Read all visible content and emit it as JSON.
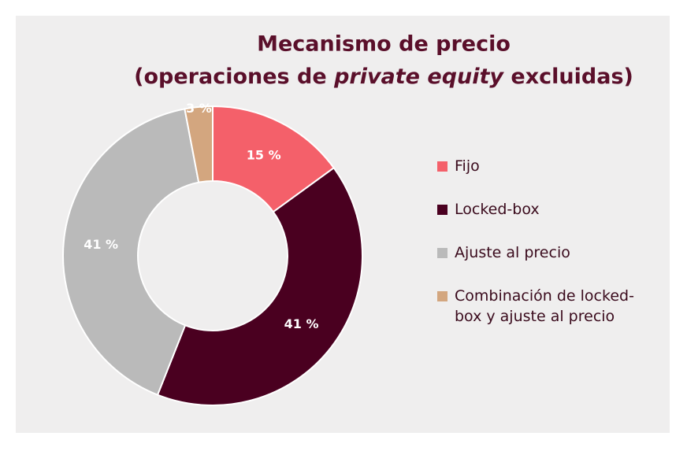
{
  "chart_data": {
    "type": "pie",
    "title": [
      "Mecanismo de precio",
      [
        "(operaciones de ",
        "private equity",
        " excluidas)"
      ]
    ],
    "categories": [
      "Fijo",
      "Locked-box",
      "Ajuste al precio",
      "Combinación de locked-box y ajuste al precio"
    ],
    "values": [
      15,
      41,
      41,
      3
    ],
    "value_labels": [
      "15 %",
      "41 %",
      "41 %",
      "3 %"
    ],
    "colors": [
      "#f4606a",
      "#4a0020",
      "#bababa",
      "#d3a67f"
    ],
    "donut": true,
    "legend": "right"
  }
}
